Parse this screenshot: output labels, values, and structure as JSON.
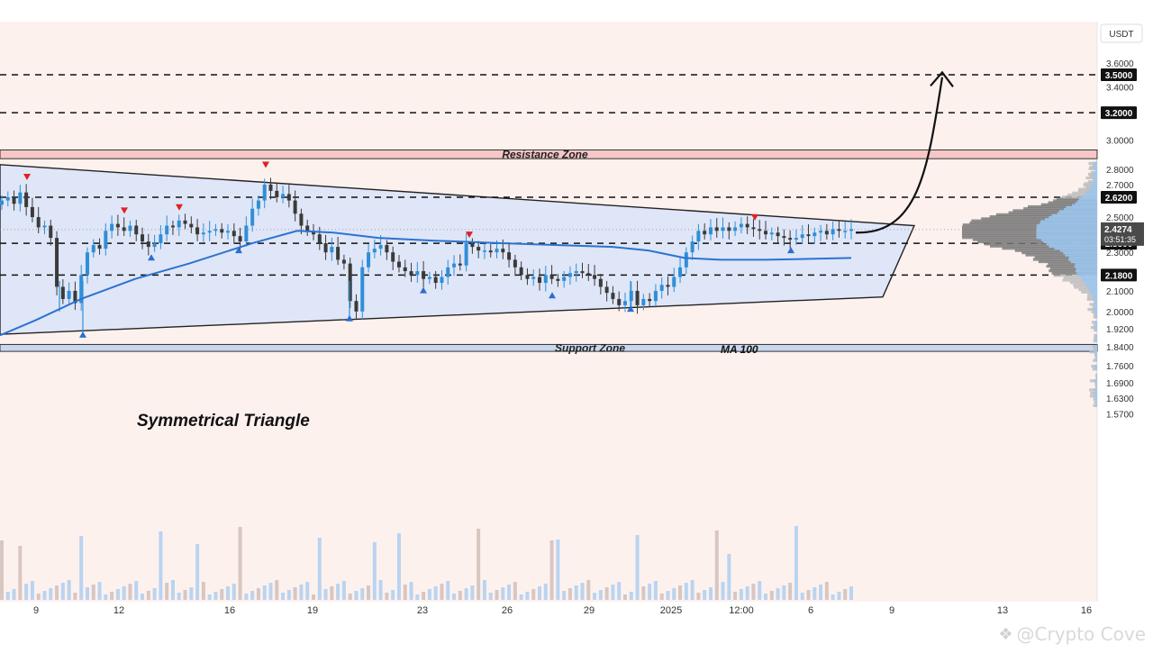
{
  "currency": "USDT",
  "annotations": {
    "resistance": "Resistance Zone",
    "support": "Support Zone",
    "pattern": "Symmetrical Triangle",
    "ma": "MA 100",
    "watermark": "@Crypto Cove"
  },
  "price_labels": {
    "current": "2.4274",
    "countdown": "03:51:35"
  },
  "colors": {
    "background_top": "#ffffff",
    "chart_background": "#fdf1ee",
    "triangle_fill": "#dfe6f7",
    "resistance_fill": "#f7c6c6",
    "support_fill": "#c9d7ee",
    "candle_up": "#2f8fd8",
    "candle_down": "#3a3a3a",
    "ma_line": "#2b73d0",
    "marker_up": "#2a6fd0",
    "marker_down": "#e02020",
    "level_label_bg": "#111111",
    "current_label_bg": "#4a4a4a"
  },
  "chart_data": {
    "type": "candlestick",
    "title": "",
    "y_axis": {
      "ticks": [
        "3.6000",
        "3.4000",
        "3.0000",
        "2.8000",
        "2.7000",
        "2.5000",
        "2.3000",
        "2.1000",
        "2.0000",
        "1.9200",
        "1.8400",
        "1.7600",
        "1.6900",
        "1.6300",
        "1.5700"
      ],
      "scale": "log",
      "range": [
        1.55,
        3.7
      ]
    },
    "x_axis": {
      "ticks": [
        "9",
        "12",
        "16",
        "19",
        "23",
        "26",
        "29",
        "2025",
        "12:00",
        "6",
        "9",
        "13",
        "16"
      ]
    },
    "horizontal_levels": [
      {
        "label": "3.5000",
        "value": 3.5
      },
      {
        "label": "3.2000",
        "value": 3.2
      },
      {
        "label": "2.6200",
        "value": 2.62
      },
      {
        "label": "2.3500",
        "value": 2.35
      },
      {
        "label": "2.1800",
        "value": 2.18
      }
    ],
    "zones": [
      {
        "name": "Resistance Zone",
        "from": 2.87,
        "to": 2.93
      },
      {
        "name": "Support Zone",
        "from": 1.82,
        "to": 1.85
      }
    ],
    "triangle": {
      "upper": [
        [
          0,
          2.83
        ],
        [
          1015,
          2.45
        ]
      ],
      "lower": [
        [
          0,
          1.895
        ],
        [
          980,
          2.07
        ]
      ]
    },
    "current_price": 2.4274,
    "close_series": [
      2.6,
      2.62,
      2.58,
      2.65,
      2.56,
      2.5,
      2.44,
      2.45,
      2.38,
      2.12,
      2.06,
      2.1,
      2.04,
      2.18,
      2.3,
      2.34,
      2.32,
      2.42,
      2.46,
      2.44,
      2.42,
      2.45,
      2.4,
      2.36,
      2.33,
      2.35,
      2.4,
      2.45,
      2.44,
      2.48,
      2.46,
      2.44,
      2.4,
      2.41,
      2.42,
      2.43,
      2.41,
      2.42,
      2.39,
      2.36,
      2.45,
      2.55,
      2.6,
      2.7,
      2.66,
      2.62,
      2.64,
      2.6,
      2.52,
      2.45,
      2.42,
      2.4,
      2.35,
      2.3,
      2.33,
      2.26,
      2.24,
      2.05,
      2.0,
      2.22,
      2.3,
      2.32,
      2.34,
      2.3,
      2.25,
      2.22,
      2.2,
      2.18,
      2.2,
      2.16,
      2.17,
      2.14,
      2.17,
      2.22,
      2.24,
      2.23,
      2.35,
      2.33,
      2.31,
      2.31,
      2.3,
      2.32,
      2.3,
      2.26,
      2.22,
      2.18,
      2.16,
      2.17,
      2.14,
      2.18,
      2.16,
      2.15,
      2.17,
      2.19,
      2.2,
      2.19,
      2.18,
      2.16,
      2.12,
      2.09,
      2.06,
      2.03,
      2.05,
      2.1,
      2.03,
      2.06,
      2.05,
      2.1,
      2.13,
      2.12,
      2.17,
      2.22,
      2.3,
      2.36,
      2.42,
      2.4,
      2.44,
      2.42,
      2.44,
      2.42,
      2.44,
      2.46,
      2.44,
      2.43,
      2.42,
      2.4,
      2.41,
      2.39,
      2.38,
      2.37,
      2.38,
      2.4,
      2.39,
      2.41,
      2.42,
      2.4,
      2.43,
      2.42,
      2.42,
      2.43
    ],
    "ma_100": [
      [
        0,
        1.89
      ],
      [
        40,
        1.96
      ],
      [
        90,
        2.06
      ],
      [
        150,
        2.16
      ],
      [
        210,
        2.24
      ],
      [
        280,
        2.35
      ],
      [
        330,
        2.42
      ],
      [
        370,
        2.41
      ],
      [
        420,
        2.38
      ],
      [
        480,
        2.365
      ],
      [
        560,
        2.35
      ],
      [
        620,
        2.34
      ],
      [
        680,
        2.33
      ],
      [
        720,
        2.31
      ],
      [
        760,
        2.27
      ],
      [
        800,
        2.26
      ],
      [
        850,
        2.26
      ],
      [
        900,
        2.265
      ],
      [
        945,
        2.27
      ]
    ],
    "swing_highs": [
      [
        30,
        2.74
      ],
      [
        138,
        2.53
      ],
      [
        199,
        2.55
      ],
      [
        295,
        2.82
      ],
      [
        521,
        2.39
      ],
      [
        838,
        2.49
      ]
    ],
    "swing_lows": [
      [
        92,
        1.9
      ],
      [
        168,
        2.28
      ],
      [
        265,
        2.32
      ],
      [
        388,
        1.975
      ],
      [
        470,
        2.11
      ],
      [
        613,
        2.085
      ],
      [
        700,
        2.02
      ],
      [
        878,
        2.32
      ]
    ],
    "projection": "breakout arrow from 2.40 rising to 3.52"
  }
}
